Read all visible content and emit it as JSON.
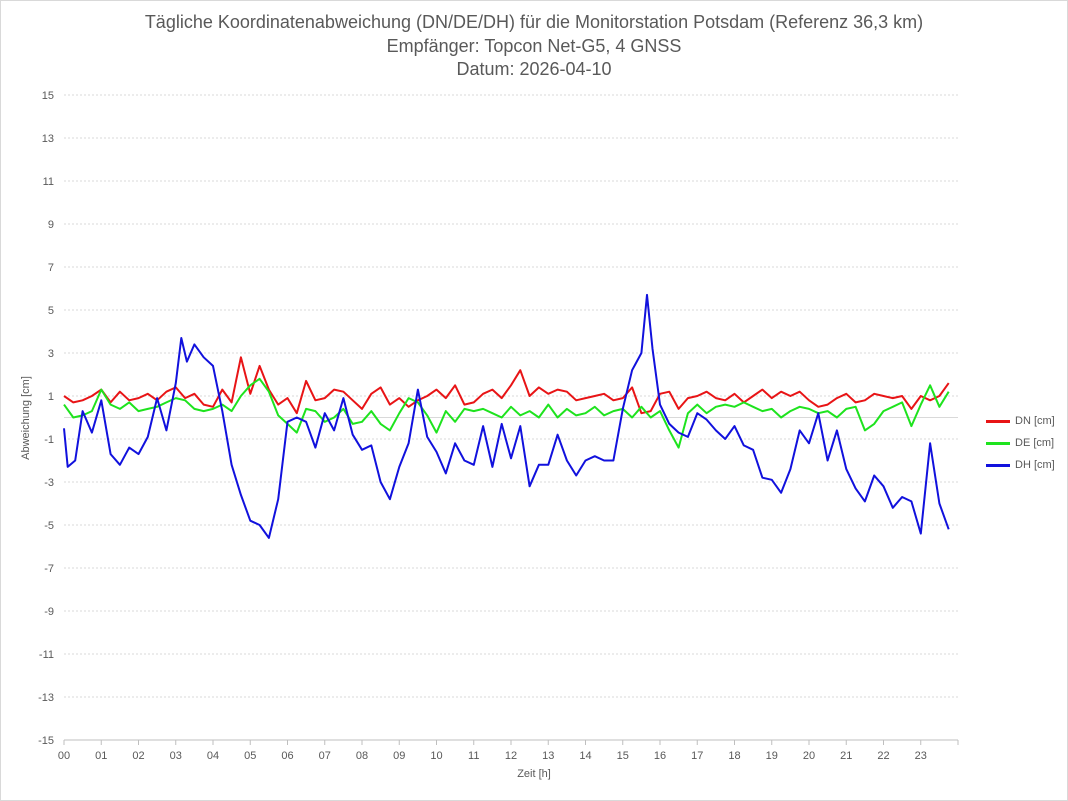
{
  "chart_data": {
    "type": "line",
    "title": "Tägliche Koordinatenabweichung (DN/DE/DH) für die Monitorstation Potsdam (Referenz 36,3 km)",
    "subtitle": "Empfänger: Topcon Net-G5, 4 GNSS",
    "date_line": "Datum: 2026-04-10",
    "xlabel": "Zeit [h]",
    "ylabel": "Abweichung [cm]",
    "x_tick_labels": [
      "00",
      "01",
      "02",
      "03",
      "04",
      "05",
      "06",
      "07",
      "08",
      "09",
      "10",
      "11",
      "12",
      "13",
      "14",
      "15",
      "16",
      "17",
      "18",
      "19",
      "20",
      "21",
      "22",
      "23"
    ],
    "xlim": [
      0,
      24
    ],
    "y_ticks": [
      15,
      13,
      11,
      9,
      7,
      5,
      3,
      1,
      -1,
      -3,
      -5,
      -7,
      -9,
      -11,
      -13,
      -15
    ],
    "ylim": [
      -15,
      15
    ],
    "grid": "horizontal dotted",
    "legend_position": "right",
    "series": [
      {
        "name": "DN [cm]",
        "color": "#e81416",
        "points": [
          [
            0.0,
            1.0
          ],
          [
            0.25,
            0.7
          ],
          [
            0.5,
            0.8
          ],
          [
            0.75,
            1.0
          ],
          [
            1.0,
            1.3
          ],
          [
            1.25,
            0.7
          ],
          [
            1.5,
            1.2
          ],
          [
            1.75,
            0.8
          ],
          [
            2.0,
            0.9
          ],
          [
            2.25,
            1.1
          ],
          [
            2.5,
            0.8
          ],
          [
            2.75,
            1.2
          ],
          [
            3.0,
            1.4
          ],
          [
            3.25,
            0.9
          ],
          [
            3.5,
            1.1
          ],
          [
            3.75,
            0.6
          ],
          [
            4.0,
            0.5
          ],
          [
            4.25,
            1.3
          ],
          [
            4.5,
            0.7
          ],
          [
            4.75,
            2.8
          ],
          [
            5.0,
            1.1
          ],
          [
            5.25,
            2.4
          ],
          [
            5.5,
            1.3
          ],
          [
            5.75,
            0.6
          ],
          [
            6.0,
            0.9
          ],
          [
            6.25,
            0.2
          ],
          [
            6.5,
            1.7
          ],
          [
            6.75,
            0.8
          ],
          [
            7.0,
            0.9
          ],
          [
            7.25,
            1.3
          ],
          [
            7.5,
            1.2
          ],
          [
            7.75,
            0.8
          ],
          [
            8.0,
            0.4
          ],
          [
            8.25,
            1.1
          ],
          [
            8.5,
            1.4
          ],
          [
            8.75,
            0.6
          ],
          [
            9.0,
            0.9
          ],
          [
            9.25,
            0.5
          ],
          [
            9.5,
            0.8
          ],
          [
            9.75,
            1.0
          ],
          [
            10.0,
            1.3
          ],
          [
            10.25,
            0.9
          ],
          [
            10.5,
            1.5
          ],
          [
            10.75,
            0.6
          ],
          [
            11.0,
            0.7
          ],
          [
            11.25,
            1.1
          ],
          [
            11.5,
            1.3
          ],
          [
            11.75,
            0.9
          ],
          [
            12.0,
            1.5
          ],
          [
            12.25,
            2.2
          ],
          [
            12.5,
            1.0
          ],
          [
            12.75,
            1.4
          ],
          [
            13.0,
            1.1
          ],
          [
            13.25,
            1.3
          ],
          [
            13.5,
            1.2
          ],
          [
            13.75,
            0.8
          ],
          [
            14.0,
            0.9
          ],
          [
            14.25,
            1.0
          ],
          [
            14.5,
            1.1
          ],
          [
            14.75,
            0.8
          ],
          [
            15.0,
            0.9
          ],
          [
            15.25,
            1.4
          ],
          [
            15.5,
            0.2
          ],
          [
            15.75,
            0.3
          ],
          [
            16.0,
            1.1
          ],
          [
            16.25,
            1.2
          ],
          [
            16.5,
            0.4
          ],
          [
            16.75,
            0.9
          ],
          [
            17.0,
            1.0
          ],
          [
            17.25,
            1.2
          ],
          [
            17.5,
            0.9
          ],
          [
            17.75,
            0.8
          ],
          [
            18.0,
            1.1
          ],
          [
            18.25,
            0.7
          ],
          [
            18.5,
            1.0
          ],
          [
            18.75,
            1.3
          ],
          [
            19.0,
            0.9
          ],
          [
            19.25,
            1.2
          ],
          [
            19.5,
            1.0
          ],
          [
            19.75,
            1.2
          ],
          [
            20.0,
            0.8
          ],
          [
            20.25,
            0.5
          ],
          [
            20.5,
            0.6
          ],
          [
            20.75,
            0.9
          ],
          [
            21.0,
            1.1
          ],
          [
            21.25,
            0.7
          ],
          [
            21.5,
            0.8
          ],
          [
            21.75,
            1.1
          ],
          [
            22.0,
            1.0
          ],
          [
            22.25,
            0.9
          ],
          [
            22.5,
            1.0
          ],
          [
            22.75,
            0.4
          ],
          [
            23.0,
            1.0
          ],
          [
            23.25,
            0.8
          ],
          [
            23.5,
            1.0
          ],
          [
            23.75,
            1.6
          ]
        ]
      },
      {
        "name": "DE [cm]",
        "color": "#1ee31e",
        "points": [
          [
            0.0,
            0.6
          ],
          [
            0.25,
            0.0
          ],
          [
            0.5,
            0.1
          ],
          [
            0.75,
            0.3
          ],
          [
            1.0,
            1.3
          ],
          [
            1.25,
            0.6
          ],
          [
            1.5,
            0.4
          ],
          [
            1.75,
            0.7
          ],
          [
            2.0,
            0.3
          ],
          [
            2.25,
            0.4
          ],
          [
            2.5,
            0.5
          ],
          [
            2.75,
            0.7
          ],
          [
            3.0,
            0.9
          ],
          [
            3.25,
            0.8
          ],
          [
            3.5,
            0.4
          ],
          [
            3.75,
            0.3
          ],
          [
            4.0,
            0.4
          ],
          [
            4.25,
            0.6
          ],
          [
            4.5,
            0.3
          ],
          [
            4.75,
            1.0
          ],
          [
            5.0,
            1.5
          ],
          [
            5.25,
            1.8
          ],
          [
            5.5,
            1.2
          ],
          [
            5.75,
            0.1
          ],
          [
            6.0,
            -0.3
          ],
          [
            6.25,
            -0.7
          ],
          [
            6.5,
            0.4
          ],
          [
            6.75,
            0.3
          ],
          [
            7.0,
            -0.2
          ],
          [
            7.25,
            0.0
          ],
          [
            7.5,
            0.4
          ],
          [
            7.75,
            -0.3
          ],
          [
            8.0,
            -0.2
          ],
          [
            8.25,
            0.3
          ],
          [
            8.5,
            -0.3
          ],
          [
            8.75,
            -0.6
          ],
          [
            9.0,
            0.2
          ],
          [
            9.25,
            0.9
          ],
          [
            9.5,
            0.7
          ],
          [
            9.75,
            0.1
          ],
          [
            10.0,
            -0.7
          ],
          [
            10.25,
            0.3
          ],
          [
            10.5,
            -0.2
          ],
          [
            10.75,
            0.4
          ],
          [
            11.0,
            0.3
          ],
          [
            11.25,
            0.4
          ],
          [
            11.5,
            0.2
          ],
          [
            11.75,
            0.0
          ],
          [
            12.0,
            0.5
          ],
          [
            12.25,
            0.1
          ],
          [
            12.5,
            0.3
          ],
          [
            12.75,
            0.0
          ],
          [
            13.0,
            0.6
          ],
          [
            13.25,
            0.0
          ],
          [
            13.5,
            0.4
          ],
          [
            13.75,
            0.1
          ],
          [
            14.0,
            0.2
          ],
          [
            14.25,
            0.5
          ],
          [
            14.5,
            0.1
          ],
          [
            14.75,
            0.3
          ],
          [
            15.0,
            0.4
          ],
          [
            15.25,
            0.0
          ],
          [
            15.5,
            0.5
          ],
          [
            15.75,
            0.0
          ],
          [
            16.0,
            0.3
          ],
          [
            16.25,
            -0.6
          ],
          [
            16.5,
            -1.4
          ],
          [
            16.75,
            0.2
          ],
          [
            17.0,
            0.6
          ],
          [
            17.25,
            0.2
          ],
          [
            17.5,
            0.5
          ],
          [
            17.75,
            0.6
          ],
          [
            18.0,
            0.5
          ],
          [
            18.25,
            0.7
          ],
          [
            18.5,
            0.5
          ],
          [
            18.75,
            0.3
          ],
          [
            19.0,
            0.4
          ],
          [
            19.25,
            0.0
          ],
          [
            19.5,
            0.3
          ],
          [
            19.75,
            0.5
          ],
          [
            20.0,
            0.4
          ],
          [
            20.25,
            0.2
          ],
          [
            20.5,
            0.3
          ],
          [
            20.75,
            0.0
          ],
          [
            21.0,
            0.4
          ],
          [
            21.25,
            0.5
          ],
          [
            21.5,
            -0.6
          ],
          [
            21.75,
            -0.3
          ],
          [
            22.0,
            0.3
          ],
          [
            22.25,
            0.5
          ],
          [
            22.5,
            0.7
          ],
          [
            22.75,
            -0.4
          ],
          [
            23.0,
            0.6
          ],
          [
            23.25,
            1.5
          ],
          [
            23.5,
            0.5
          ],
          [
            23.75,
            1.2
          ]
        ]
      },
      {
        "name": "DH [cm]",
        "color": "#1111dd",
        "points": [
          [
            0.0,
            -0.5
          ],
          [
            0.1,
            -2.3
          ],
          [
            0.3,
            -2.0
          ],
          [
            0.5,
            0.3
          ],
          [
            0.75,
            -0.7
          ],
          [
            1.0,
            0.8
          ],
          [
            1.25,
            -1.7
          ],
          [
            1.5,
            -2.2
          ],
          [
            1.75,
            -1.4
          ],
          [
            2.0,
            -1.7
          ],
          [
            2.25,
            -0.9
          ],
          [
            2.5,
            0.9
          ],
          [
            2.75,
            -0.6
          ],
          [
            3.0,
            1.6
          ],
          [
            3.15,
            3.7
          ],
          [
            3.3,
            2.6
          ],
          [
            3.5,
            3.4
          ],
          [
            3.75,
            2.8
          ],
          [
            4.0,
            2.4
          ],
          [
            4.25,
            0.3
          ],
          [
            4.5,
            -2.2
          ],
          [
            4.75,
            -3.6
          ],
          [
            5.0,
            -4.8
          ],
          [
            5.25,
            -5.0
          ],
          [
            5.5,
            -5.6
          ],
          [
            5.75,
            -3.8
          ],
          [
            6.0,
            -0.2
          ],
          [
            6.25,
            0.0
          ],
          [
            6.5,
            -0.2
          ],
          [
            6.75,
            -1.4
          ],
          [
            7.0,
            0.2
          ],
          [
            7.25,
            -0.6
          ],
          [
            7.5,
            0.9
          ],
          [
            7.75,
            -0.8
          ],
          [
            8.0,
            -1.5
          ],
          [
            8.25,
            -1.3
          ],
          [
            8.5,
            -3.0
          ],
          [
            8.75,
            -3.8
          ],
          [
            9.0,
            -2.3
          ],
          [
            9.25,
            -1.2
          ],
          [
            9.5,
            1.3
          ],
          [
            9.75,
            -0.9
          ],
          [
            10.0,
            -1.6
          ],
          [
            10.25,
            -2.6
          ],
          [
            10.5,
            -1.2
          ],
          [
            10.75,
            -2.0
          ],
          [
            11.0,
            -2.2
          ],
          [
            11.25,
            -0.4
          ],
          [
            11.5,
            -2.3
          ],
          [
            11.75,
            -0.3
          ],
          [
            12.0,
            -1.9
          ],
          [
            12.25,
            -0.4
          ],
          [
            12.5,
            -3.2
          ],
          [
            12.75,
            -2.2
          ],
          [
            13.0,
            -2.2
          ],
          [
            13.25,
            -0.8
          ],
          [
            13.5,
            -2.0
          ],
          [
            13.75,
            -2.7
          ],
          [
            14.0,
            -2.0
          ],
          [
            14.25,
            -1.8
          ],
          [
            14.5,
            -2.0
          ],
          [
            14.75,
            -2.0
          ],
          [
            15.0,
            0.4
          ],
          [
            15.25,
            2.2
          ],
          [
            15.5,
            3.0
          ],
          [
            15.65,
            5.7
          ],
          [
            15.8,
            3.2
          ],
          [
            16.0,
            0.6
          ],
          [
            16.25,
            -0.3
          ],
          [
            16.5,
            -0.7
          ],
          [
            16.75,
            -0.9
          ],
          [
            17.0,
            0.2
          ],
          [
            17.25,
            -0.1
          ],
          [
            17.5,
            -0.6
          ],
          [
            17.75,
            -1.0
          ],
          [
            18.0,
            -0.4
          ],
          [
            18.25,
            -1.3
          ],
          [
            18.5,
            -1.5
          ],
          [
            18.75,
            -2.8
          ],
          [
            19.0,
            -2.9
          ],
          [
            19.25,
            -3.5
          ],
          [
            19.5,
            -2.4
          ],
          [
            19.75,
            -0.6
          ],
          [
            20.0,
            -1.2
          ],
          [
            20.25,
            0.2
          ],
          [
            20.5,
            -2.0
          ],
          [
            20.75,
            -0.6
          ],
          [
            21.0,
            -2.4
          ],
          [
            21.25,
            -3.3
          ],
          [
            21.5,
            -3.9
          ],
          [
            21.75,
            -2.7
          ],
          [
            22.0,
            -3.2
          ],
          [
            22.25,
            -4.2
          ],
          [
            22.5,
            -3.7
          ],
          [
            22.75,
            -3.9
          ],
          [
            23.0,
            -5.4
          ],
          [
            23.25,
            -1.2
          ],
          [
            23.5,
            -4.0
          ],
          [
            23.75,
            -5.2
          ]
        ]
      }
    ]
  }
}
